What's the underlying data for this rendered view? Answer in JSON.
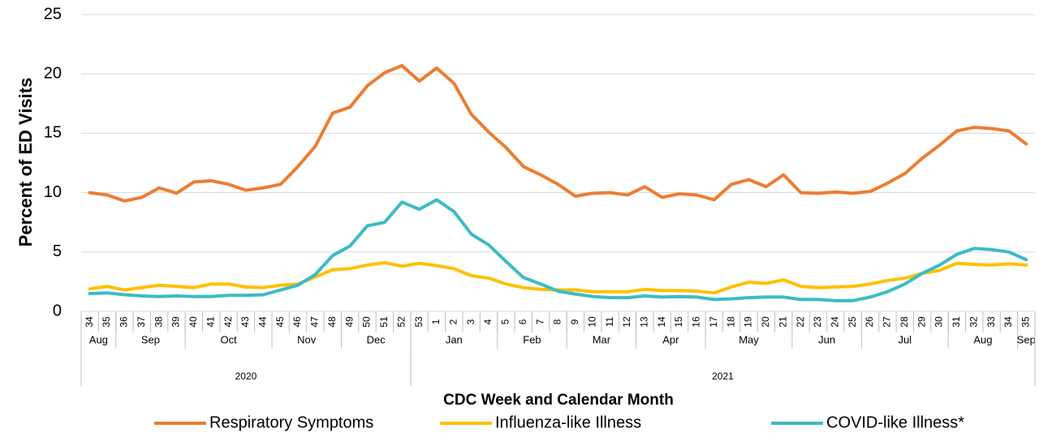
{
  "chart_data": {
    "type": "line",
    "y_label": "Percent of ED Visits",
    "x_label": "CDC Week and Calendar Month",
    "categories": [
      "34",
      "35",
      "36",
      "37",
      "38",
      "39",
      "40",
      "41",
      "42",
      "43",
      "44",
      "45",
      "46",
      "47",
      "48",
      "49",
      "50",
      "51",
      "52",
      "53",
      "1",
      "2",
      "3",
      "4",
      "5",
      "6",
      "7",
      "8",
      "9",
      "10",
      "11",
      "12",
      "13",
      "14",
      "15",
      "16",
      "17",
      "18",
      "19",
      "20",
      "21",
      "22",
      "23",
      "24",
      "25",
      "26",
      "27",
      "28",
      "29",
      "30",
      "31",
      "32",
      "33",
      "34",
      "35"
    ],
    "months": [
      {
        "label": "Aug",
        "weeks": 2
      },
      {
        "label": "Sep",
        "weeks": 4
      },
      {
        "label": "Oct",
        "weeks": 5
      },
      {
        "label": "Nov",
        "weeks": 4
      },
      {
        "label": "Dec",
        "weeks": 4
      },
      {
        "label": "Jan",
        "weeks": 5
      },
      {
        "label": "Feb",
        "weeks": 4
      },
      {
        "label": "Mar",
        "weeks": 4
      },
      {
        "label": "Apr",
        "weeks": 4
      },
      {
        "label": "May",
        "weeks": 5
      },
      {
        "label": "Jun",
        "weeks": 4
      },
      {
        "label": "Jul",
        "weeks": 5
      },
      {
        "label": "Aug",
        "weeks": 4
      },
      {
        "label": "Sep",
        "weeks": 1
      }
    ],
    "years": [
      {
        "label": "2020",
        "weeks": 19
      },
      {
        "label": "2021",
        "weeks": 36
      }
    ],
    "series": [
      {
        "name": "Respiratory Symptoms",
        "color": "#ed7d31",
        "values": [
          10,
          9.8,
          9.3,
          9.6,
          10.4,
          9.95,
          10.9,
          11,
          10.7,
          10.2,
          10.4,
          10.7,
          12.2,
          13.9,
          16.7,
          17.2,
          19,
          20.1,
          20.7,
          19.4,
          20.5,
          19.2,
          16.6,
          15.1,
          13.8,
          12.2,
          11.5,
          10.7,
          9.7,
          9.95,
          10,
          9.8,
          10.5,
          9.6,
          9.9,
          9.8,
          9.4,
          10.7,
          11.1,
          10.5,
          11.5,
          10,
          9.95,
          10.05,
          9.95,
          10.1,
          10.8,
          11.6,
          12.9,
          14,
          15.2,
          15.5,
          15.4,
          15.2,
          14.1
        ]
      },
      {
        "name": "Influenza-like Illness",
        "color": "#ffc000",
        "values": [
          1.9,
          2.1,
          1.8,
          2,
          2.2,
          2.1,
          2,
          2.3,
          2.3,
          2.05,
          2,
          2.2,
          2.3,
          2.9,
          3.5,
          3.6,
          3.9,
          4.1,
          3.8,
          4.05,
          3.85,
          3.6,
          3,
          2.8,
          2.3,
          2,
          1.85,
          1.8,
          1.8,
          1.65,
          1.65,
          1.65,
          1.85,
          1.75,
          1.75,
          1.7,
          1.55,
          2.05,
          2.45,
          2.35,
          2.65,
          2.1,
          2,
          2.05,
          2.1,
          2.3,
          2.6,
          2.8,
          3.2,
          3.45,
          4.05,
          3.95,
          3.9,
          4,
          3.9
        ]
      },
      {
        "name": "COVID-like Illness*",
        "color": "#3bbcc4",
        "values": [
          1.5,
          1.55,
          1.4,
          1.3,
          1.25,
          1.3,
          1.25,
          1.25,
          1.35,
          1.35,
          1.4,
          1.8,
          2.2,
          3.1,
          4.7,
          5.5,
          7.2,
          7.5,
          9.2,
          8.6,
          9.4,
          8.4,
          6.5,
          5.6,
          4.2,
          2.85,
          2.3,
          1.7,
          1.45,
          1.25,
          1.15,
          1.15,
          1.3,
          1.2,
          1.25,
          1.2,
          1,
          1.05,
          1.15,
          1.2,
          1.2,
          1,
          1,
          0.9,
          0.9,
          1.2,
          1.65,
          2.3,
          3.2,
          3.9,
          4.8,
          5.3,
          5.2,
          5,
          4.35
        ]
      }
    ],
    "ylim": [
      0,
      25
    ],
    "yticks": [
      0,
      5,
      10,
      15,
      20,
      25
    ],
    "grid": true,
    "legend": "bottom"
  }
}
